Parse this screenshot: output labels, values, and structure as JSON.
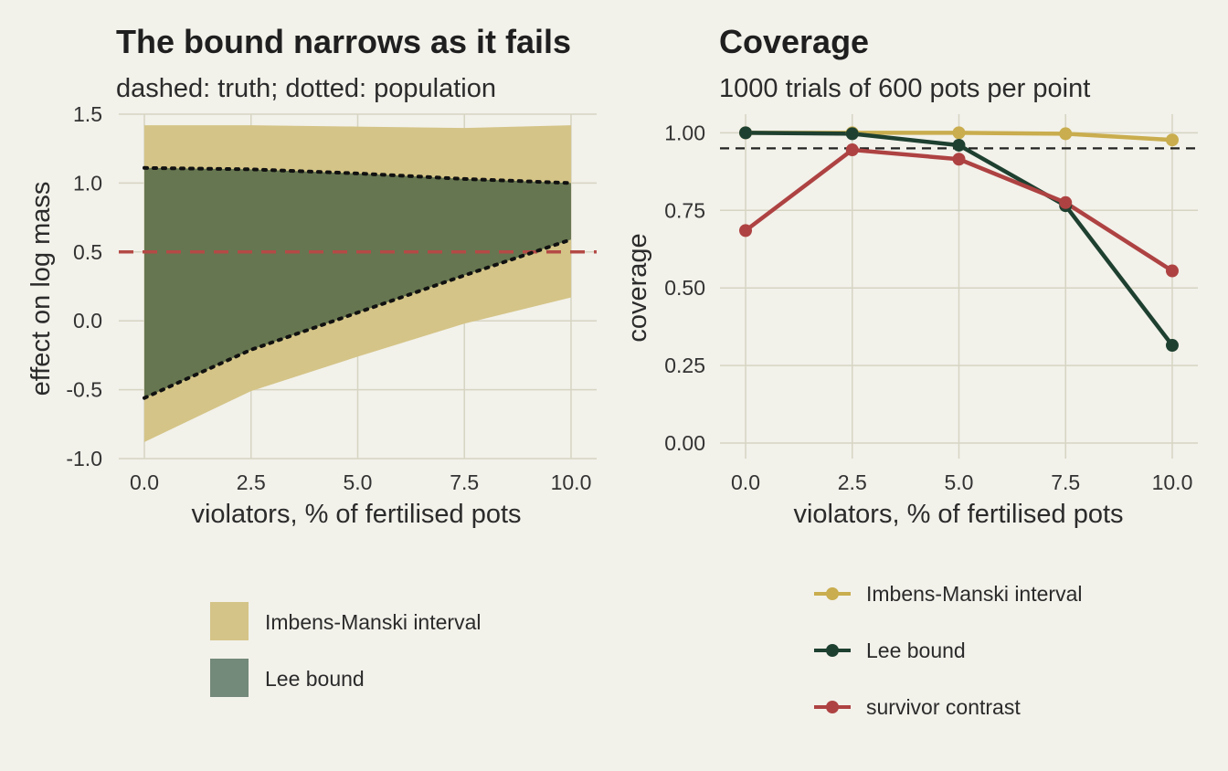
{
  "colors": {
    "background": "#f2f1ea",
    "grid": "#d6d4c2",
    "imbens_manski": "#c9ad4e",
    "imbens_manski_fill": "#d4c487",
    "lee": "#1e4030",
    "lee_fill": "#667650",
    "lee_legend_fill": "#73897a",
    "survivor": "#ae4242",
    "truth_line": "#b44a46",
    "reference": "#222222"
  },
  "chart_data": [
    {
      "type": "area",
      "title": "The bound narrows as it fails",
      "subtitle": "dashed: truth; dotted: population",
      "xlabel": "violators, % of fertilised pots",
      "ylabel": "effect on log mass",
      "xlim": [
        -0.6,
        10.6
      ],
      "ylim": [
        -1.0,
        1.5
      ],
      "x_ticks": [
        0,
        2.5,
        5,
        7.5,
        10
      ],
      "x_tick_labels": [
        "0.0",
        "2.5",
        "5.0",
        "7.5",
        "10.0"
      ],
      "y_ticks": [
        -1.0,
        -0.5,
        0.0,
        0.5,
        1.0,
        1.5
      ],
      "y_tick_labels": [
        "-1.0",
        "-0.5",
        "0.0",
        "0.5",
        "1.0",
        "1.5"
      ],
      "grid": true,
      "legend_position": "bottom",
      "truth": 0.5,
      "x": [
        0,
        2.5,
        5,
        7.5,
        10
      ],
      "series": [
        {
          "name": "Imbens-Manski interval",
          "lower": [
            -0.88,
            -0.51,
            -0.26,
            -0.02,
            0.17
          ],
          "upper": [
            1.42,
            1.42,
            1.41,
            1.4,
            1.42
          ]
        },
        {
          "name": "Lee bound",
          "lower": [
            -0.56,
            -0.21,
            0.06,
            0.33,
            0.59
          ],
          "upper": [
            1.11,
            1.1,
            1.07,
            1.03,
            1.0
          ]
        }
      ],
      "population_bound": {
        "lower": [
          -0.56,
          -0.21,
          0.06,
          0.33,
          0.59
        ],
        "upper": [
          1.11,
          1.1,
          1.07,
          1.03,
          1.0
        ]
      },
      "legend": [
        {
          "label": "Imbens-Manski interval"
        },
        {
          "label": "Lee bound"
        }
      ]
    },
    {
      "type": "line",
      "title": "Coverage",
      "subtitle": "1000 trials of 600 pots per point",
      "xlabel": "violators, % of fertilised pots",
      "ylabel": "coverage",
      "xlim": [
        -0.6,
        10.6
      ],
      "ylim": [
        -0.05,
        1.06
      ],
      "x_ticks": [
        0,
        2.5,
        5,
        7.5,
        10
      ],
      "x_tick_labels": [
        "0.0",
        "2.5",
        "5.0",
        "7.5",
        "10.0"
      ],
      "y_ticks": [
        0,
        0.25,
        0.5,
        0.75,
        1.0
      ],
      "y_tick_labels": [
        "0.00",
        "0.25",
        "0.50",
        "0.75",
        "1.00"
      ],
      "grid": true,
      "legend_position": "bottom",
      "reference_line": 0.95,
      "x": [
        0,
        2.5,
        5,
        7.5,
        10
      ],
      "series": [
        {
          "name": "Imbens-Manski interval",
          "values": [
            1.0,
            1.0,
            1.0,
            0.997,
            0.977
          ]
        },
        {
          "name": "Lee bound",
          "values": [
            1.0,
            0.997,
            0.96,
            0.765,
            0.315
          ]
        },
        {
          "name": "survivor contrast",
          "values": [
            0.685,
            0.945,
            0.915,
            0.775,
            0.555
          ]
        }
      ],
      "legend": [
        {
          "label": "Imbens-Manski interval"
        },
        {
          "label": "Lee bound"
        },
        {
          "label": "survivor contrast"
        }
      ]
    }
  ]
}
